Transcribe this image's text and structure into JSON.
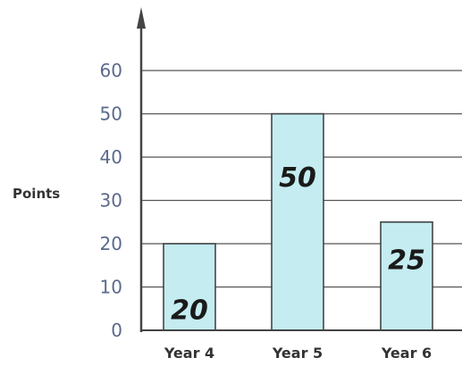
{
  "chart_data": {
    "type": "bar",
    "ylabel": "Points",
    "categories": [
      "Year 4",
      "Year 5",
      "Year 6"
    ],
    "values": [
      20,
      50,
      25
    ],
    "data_labels": [
      "20",
      "50",
      "25"
    ],
    "yticks": [
      0,
      10,
      20,
      30,
      40,
      50,
      60
    ],
    "ylim": [
      0,
      70
    ],
    "grid": true,
    "colors": {
      "bar_fill": "#c4ecf1",
      "bar_stroke": "#3a3a3a",
      "grid": "#555555",
      "axis": "#444444",
      "tick_text": "#5b6a8c"
    }
  }
}
